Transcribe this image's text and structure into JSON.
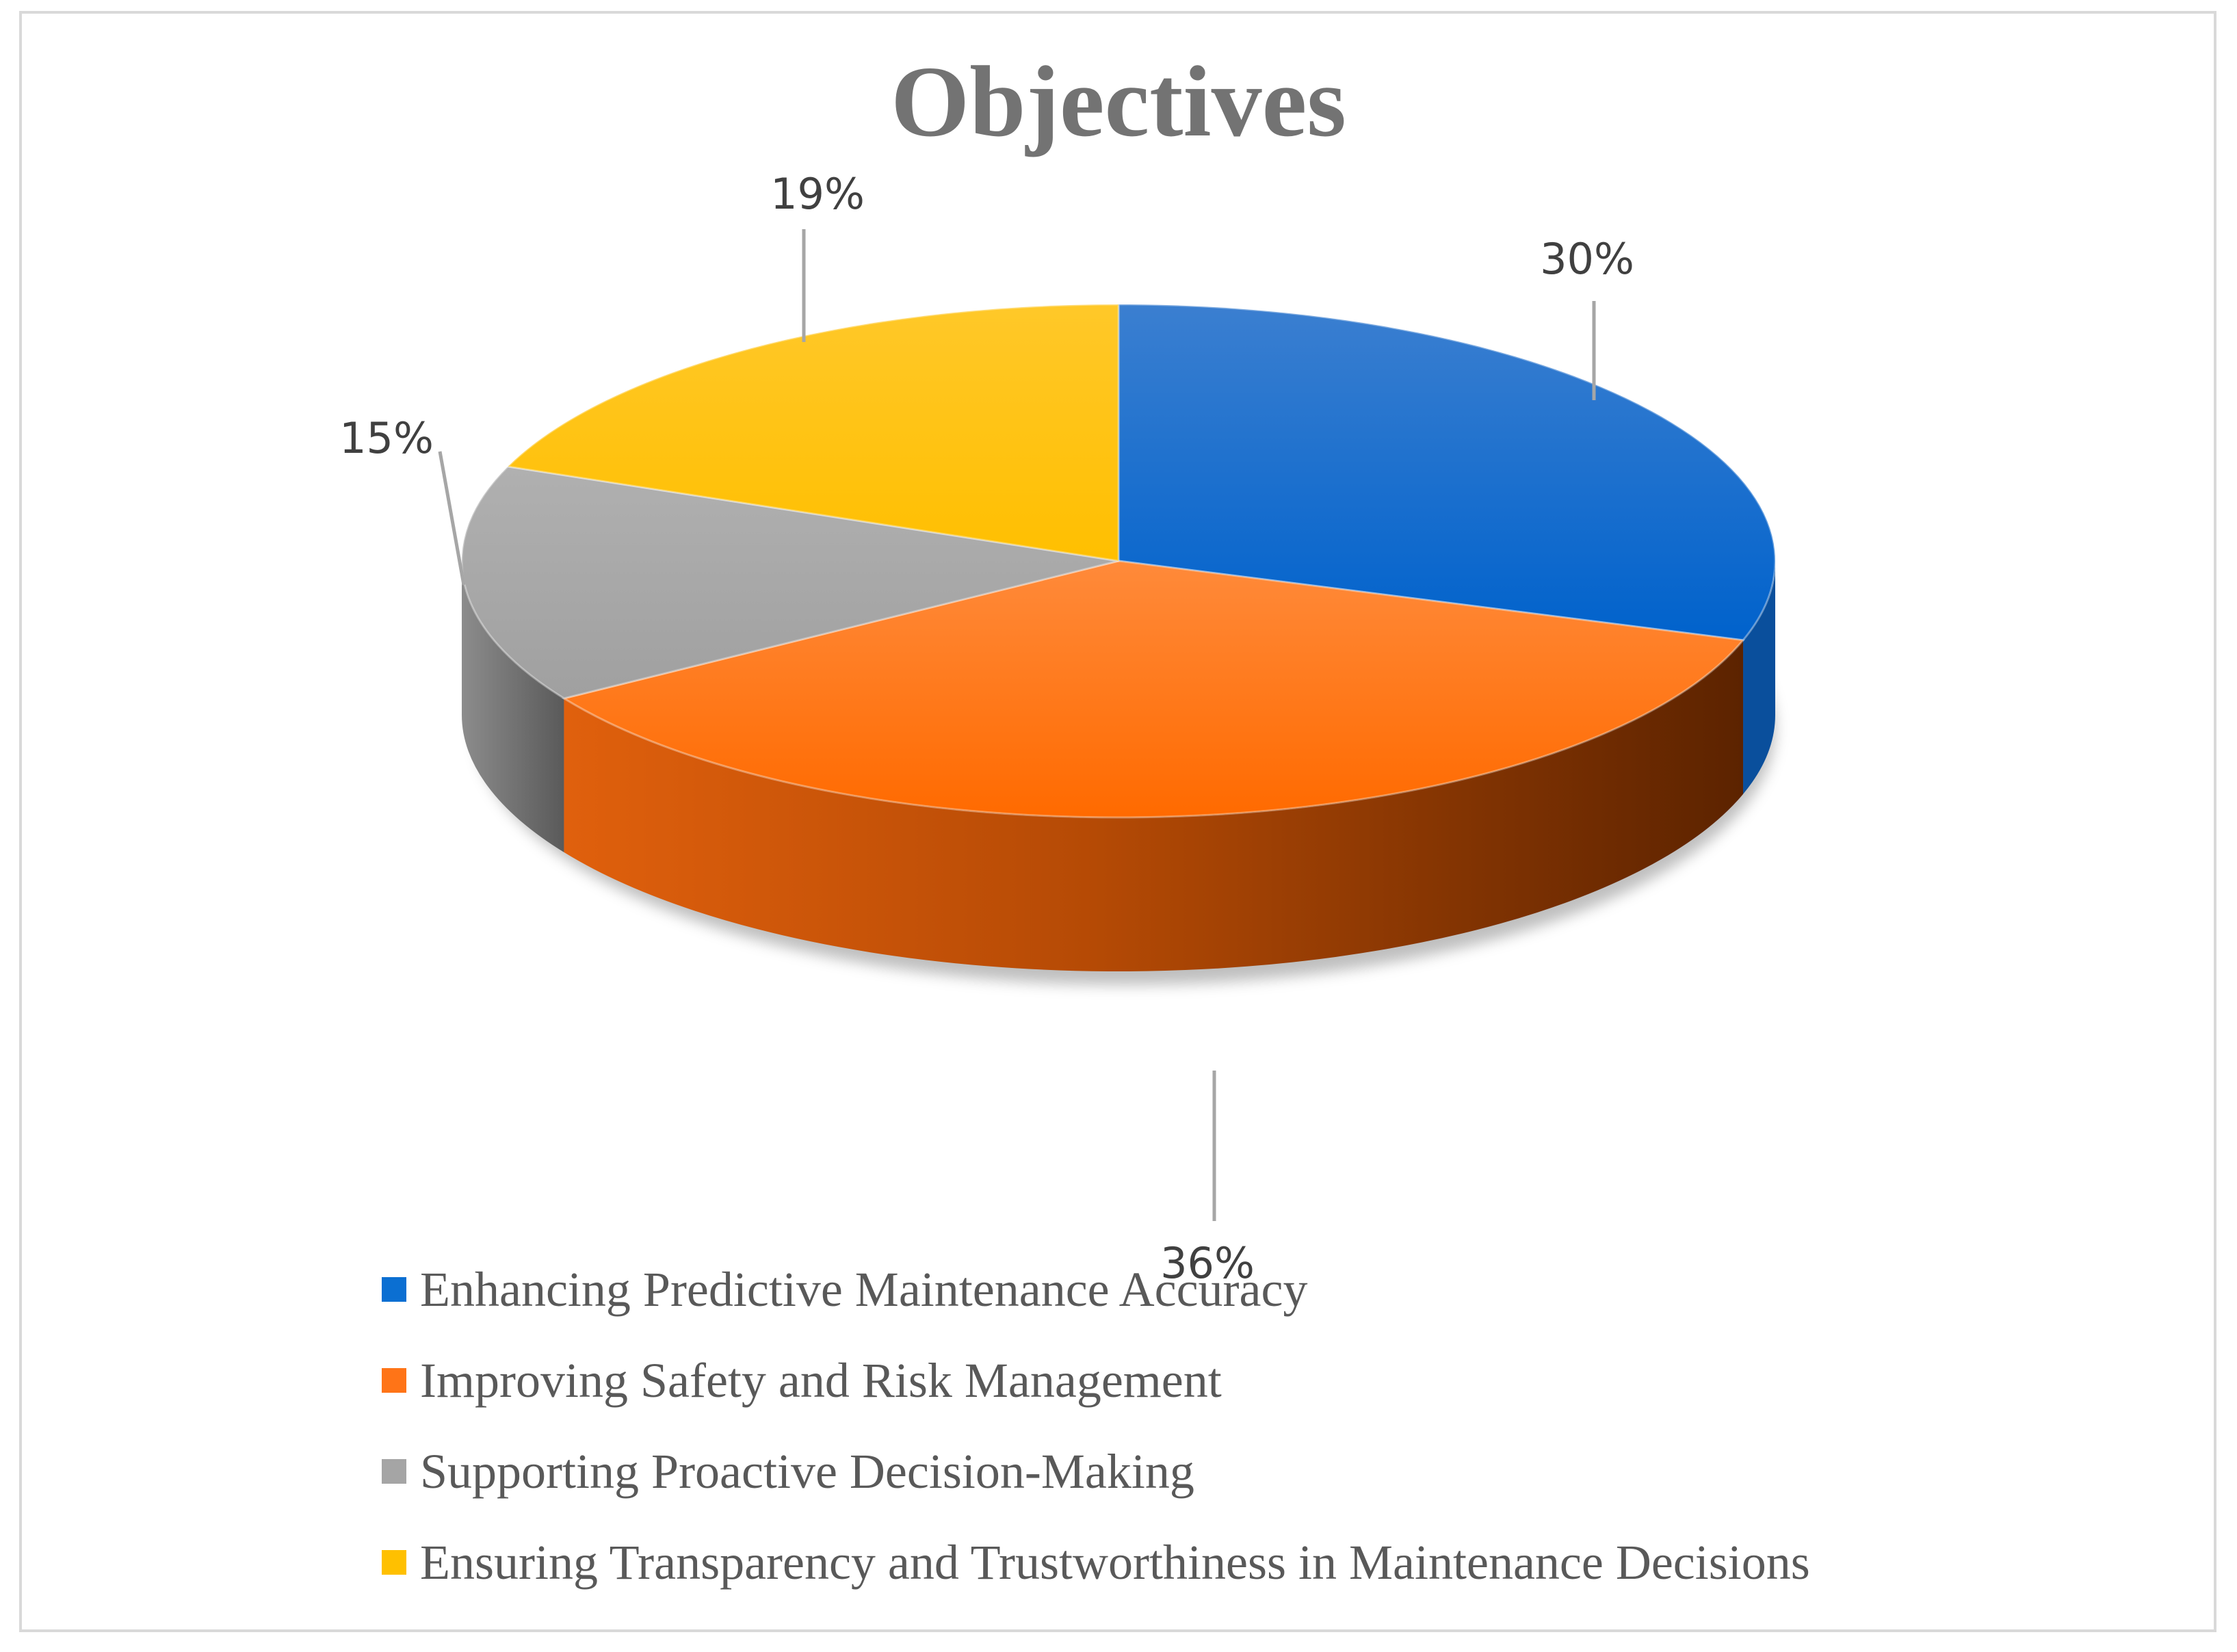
{
  "chart_data": {
    "type": "pie",
    "title": "Objectives",
    "categories": [
      "Enhancing Predictive Maintenance Accuracy",
      "Improving Safety and Risk Management",
      "Supporting Proactive Decision-Making",
      "Ensuring Transparency and Trustworthiness in Maintenance Decisions"
    ],
    "values": [
      30,
      36,
      15,
      19
    ],
    "labels": [
      "30%",
      "36%",
      "15%",
      "19%"
    ],
    "colors": [
      "#0b6fd2",
      "#ff7417",
      "#a5a5a5",
      "#ffc000"
    ],
    "legend_position": "bottom",
    "style": "3d"
  }
}
